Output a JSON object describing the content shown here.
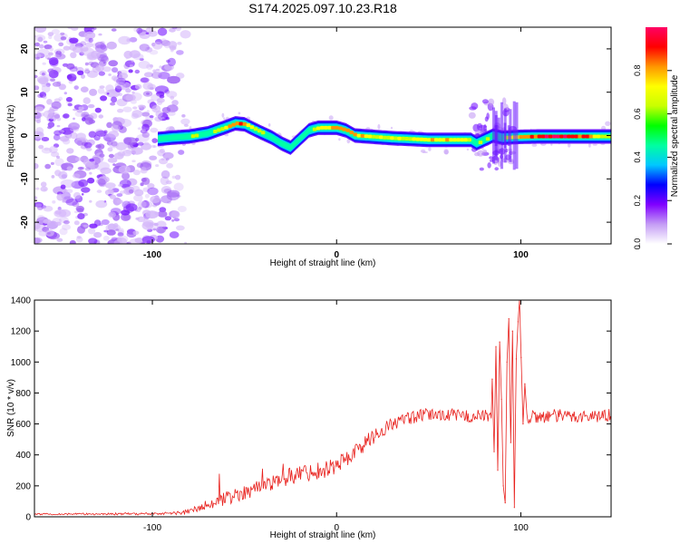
{
  "figure_title": "S174.2025.097.10.23.R18",
  "chart_data": [
    {
      "type": "heatmap",
      "title": "S174.2025.097.10.23.R18",
      "xlabel": "Height of straight line (km)",
      "ylabel": "Frequency (Hz)",
      "xlim": [
        -164,
        149
      ],
      "ylim": [
        -25,
        25
      ],
      "xticks": [
        -100,
        0,
        100
      ],
      "xtick_labels": [
        "-100",
        "0",
        "100"
      ],
      "yticks": [
        -20,
        -10,
        0,
        10,
        20
      ],
      "ytick_labels": [
        "-20",
        "-10",
        "0",
        "10",
        "20"
      ],
      "colorbar": {
        "label": "Normalized spectral amplitude",
        "range": [
          0.0,
          1.0
        ],
        "ticks": [
          0.0,
          0.2,
          0.4,
          0.6,
          0.8
        ],
        "tick_labels": [
          "0.0",
          "0.2",
          "0.4",
          "0.6",
          "0.8"
        ],
        "colors": [
          "#ffffff",
          "#c49cf5",
          "#8000ff",
          "#0000ff",
          "#00c8ff",
          "#00ffa0",
          "#00ff00",
          "#c8ff00",
          "#ffff00",
          "#ff9600",
          "#ff0000",
          "#ff0064"
        ]
      },
      "noise_region_x": [
        -164,
        -88
      ],
      "ridge": {
        "x": [
          -97,
          -90,
          -80,
          -70,
          -60,
          -55,
          -50,
          -45,
          -40,
          -35,
          -30,
          -25,
          -20,
          -15,
          -10,
          -5,
          0,
          5,
          10,
          20,
          30,
          40,
          50,
          60,
          70,
          73,
          76,
          80,
          85,
          90,
          100,
          110,
          120,
          130,
          140,
          149
        ],
        "freq": [
          -0.8,
          -0.5,
          -0.2,
          0.5,
          2.0,
          2.8,
          2.6,
          1.5,
          0.5,
          -0.5,
          -1.8,
          -2.8,
          -0.8,
          1.2,
          1.8,
          1.8,
          1.8,
          1.2,
          0.0,
          -0.3,
          -0.6,
          -0.8,
          -1.0,
          -1.0,
          -1.0,
          -1.0,
          -1.8,
          -1.0,
          0.0,
          -0.5,
          -0.3,
          -0.2,
          -0.2,
          -0.2,
          -0.2,
          -0.2
        ],
        "amplitude": [
          0.4,
          0.5,
          0.55,
          0.6,
          0.7,
          0.85,
          0.8,
          0.65,
          0.6,
          0.55,
          0.5,
          0.55,
          0.5,
          0.6,
          0.75,
          0.8,
          0.85,
          0.8,
          0.8,
          0.7,
          0.65,
          0.7,
          0.75,
          0.75,
          0.7,
          0.5,
          0.6,
          0.65,
          0.6,
          0.6,
          0.8,
          0.95,
          0.95,
          0.9,
          0.75,
          0.6
        ]
      },
      "burst_region_x": [
        73,
        96
      ]
    },
    {
      "type": "line",
      "xlabel": "Height of straight line (km)",
      "ylabel": "SNR (10 * v/v)",
      "xlim": [
        -164,
        149
      ],
      "ylim": [
        0,
        1400
      ],
      "xticks": [
        -100,
        0,
        100
      ],
      "xtick_labels": [
        "-100",
        "0",
        "100"
      ],
      "yticks": [
        0,
        200,
        400,
        600,
        800,
        1000,
        1200,
        1400
      ],
      "ytick_labels": [
        "0",
        "200",
        "400",
        "600",
        "800",
        "1000",
        "1200",
        "1400"
      ],
      "series": [
        {
          "name": "SNR",
          "color": "#e8201c",
          "trend_x": [
            -164,
            -130,
            -100,
            -85,
            -78,
            -70,
            -60,
            -50,
            -40,
            -30,
            -20,
            -10,
            0,
            10,
            20,
            30,
            40,
            50,
            60,
            70,
            80,
            90,
            100,
            110,
            120,
            130,
            140,
            149
          ],
          "trend_y": [
            18,
            18,
            20,
            25,
            40,
            80,
            120,
            160,
            200,
            240,
            280,
            300,
            330,
            420,
            520,
            600,
            640,
            660,
            660,
            650,
            650,
            640,
            640,
            650,
            650,
            650,
            650,
            660
          ],
          "noise_amplitude_x": [
            -164,
            -90,
            -60,
            -30,
            0,
            30,
            60,
            80,
            100,
            149
          ],
          "noise_amplitude_y": [
            5,
            8,
            45,
            55,
            60,
            45,
            40,
            45,
            50,
            40
          ],
          "spikes": [
            {
              "x": 84.5,
              "y": 890
            },
            {
              "x": 85.5,
              "y": 420
            },
            {
              "x": 86.5,
              "y": 1100
            },
            {
              "x": 87.5,
              "y": 300
            },
            {
              "x": 88.5,
              "y": 1130
            },
            {
              "x": 89.5,
              "y": 760
            },
            {
              "x": 90.5,
              "y": 200
            },
            {
              "x": 91.5,
              "y": 90
            },
            {
              "x": 92.5,
              "y": 1000
            },
            {
              "x": 93.5,
              "y": 1280
            },
            {
              "x": 94.5,
              "y": 480
            },
            {
              "x": 95.5,
              "y": 1200
            },
            {
              "x": 96.5,
              "y": 60
            },
            {
              "x": 97.5,
              "y": 1020
            },
            {
              "x": 98.5,
              "y": 1260
            },
            {
              "x": 99.3,
              "y": 1400
            },
            {
              "x": 100.2,
              "y": 1030
            },
            {
              "x": 101.2,
              "y": 600
            },
            {
              "x": 102.2,
              "y": 860
            }
          ]
        }
      ]
    }
  ]
}
